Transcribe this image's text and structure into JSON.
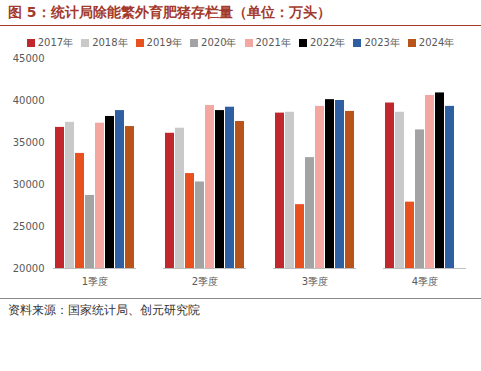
{
  "chart_data": {
    "type": "bar",
    "title": "图 5：统计局除能繁外育肥猪存栏量（单位：万头）",
    "caption": "资料来源：国家统计局、创元研究院",
    "categories": [
      "1季度",
      "2季度",
      "3季度",
      "4季度"
    ],
    "series": [
      {
        "name": "2017年",
        "color": "#c0282d",
        "values": [
          36800,
          36100,
          38500,
          39700
        ]
      },
      {
        "name": "2018年",
        "color": "#c9c9c9",
        "values": [
          37400,
          36700,
          38600,
          38600
        ]
      },
      {
        "name": "2019年",
        "color": "#e8501e",
        "values": [
          33700,
          31300,
          27600,
          27900
        ]
      },
      {
        "name": "2020年",
        "color": "#a3a3a3",
        "values": [
          28700,
          30300,
          33200,
          36500
        ]
      },
      {
        "name": "2021年",
        "color": "#f4a6a0",
        "values": [
          37300,
          39400,
          39300,
          40600
        ]
      },
      {
        "name": "2022年",
        "color": "#000000",
        "values": [
          38100,
          38800,
          40100,
          40900
        ]
      },
      {
        "name": "2023年",
        "color": "#2e5fa3",
        "values": [
          38800,
          39200,
          40000,
          39300
        ]
      },
      {
        "name": "2024年",
        "color": "#b8541a",
        "values": [
          36900,
          37500,
          38700,
          null
        ]
      }
    ],
    "ylim": [
      20000,
      45000
    ],
    "yticks": [
      20000,
      25000,
      30000,
      35000,
      40000,
      45000
    ],
    "grid": false,
    "legend": "top"
  }
}
